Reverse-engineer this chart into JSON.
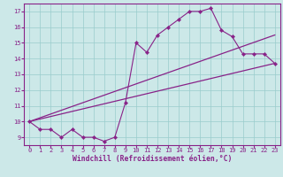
{
  "xlabel": "Windchill (Refroidissement éolien,°C)",
  "bg_color": "#cce8e8",
  "line_color": "#882288",
  "grid_color": "#99cccc",
  "xlim": [
    -0.5,
    23.5
  ],
  "ylim": [
    8.5,
    17.5
  ],
  "xticks": [
    0,
    1,
    2,
    3,
    4,
    5,
    6,
    7,
    8,
    9,
    10,
    11,
    12,
    13,
    14,
    15,
    16,
    17,
    18,
    19,
    20,
    21,
    22,
    23
  ],
  "yticks": [
    9,
    10,
    11,
    12,
    13,
    14,
    15,
    16,
    17
  ],
  "line1_x": [
    0,
    1,
    2,
    3,
    4,
    5,
    6,
    7,
    8,
    9,
    10,
    11,
    12,
    13,
    14,
    15,
    16,
    17,
    18,
    19,
    20,
    21,
    22,
    23
  ],
  "line1_y": [
    10.0,
    9.5,
    9.5,
    9.0,
    9.5,
    9.0,
    9.0,
    8.75,
    9.0,
    11.2,
    15.0,
    14.4,
    15.5,
    16.0,
    16.5,
    17.0,
    17.0,
    17.2,
    15.8,
    15.4,
    14.3,
    14.3,
    14.3,
    13.7
  ],
  "line2_x": [
    0,
    23
  ],
  "line2_y": [
    10.0,
    13.7
  ],
  "line3_x": [
    0,
    23
  ],
  "line3_y": [
    10.0,
    15.5
  ],
  "xlabel_fontsize": 5.8,
  "tick_fontsize": 5.0
}
